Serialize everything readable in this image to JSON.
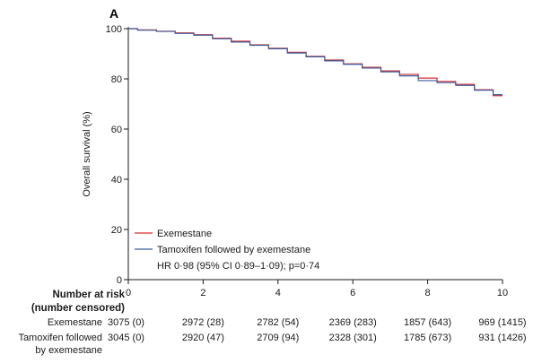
{
  "chart_data": {
    "type": "line",
    "panel_label": "A",
    "ylabel": "Overall survival (%)",
    "xlabel": "",
    "xlim": [
      0,
      10
    ],
    "ylim": [
      0,
      100
    ],
    "x_ticks": [
      0,
      2,
      4,
      6,
      8,
      10
    ],
    "y_ticks": [
      0,
      20,
      40,
      60,
      80,
      100
    ],
    "grid": false,
    "legend_position": "bottom-left",
    "annotation": "HR 0·98 (95% CI 0·89–1·09); p=0·74",
    "series": [
      {
        "name": "Exemestane",
        "color": "#d62f2f",
        "x": [
          0,
          0.5,
          1,
          1.5,
          2,
          2.5,
          3,
          3.5,
          4,
          4.5,
          5,
          5.5,
          6,
          6.5,
          7,
          7.5,
          8,
          8.5,
          9,
          9.5,
          10
        ],
        "y": [
          100,
          99.5,
          99,
          98.3,
          97.6,
          96.2,
          95,
          93.6,
          92.2,
          90.6,
          89,
          87.5,
          86,
          84.6,
          83.2,
          81.8,
          80.3,
          79,
          77.8,
          75.7,
          73.3
        ]
      },
      {
        "name": "Tamoxifen followed by exemestane",
        "color": "#3a5fa0",
        "x": [
          0,
          0.5,
          1,
          1.5,
          2,
          2.5,
          3,
          3.5,
          4,
          4.5,
          5,
          5.5,
          6,
          6.5,
          7,
          7.5,
          8,
          8.5,
          9,
          9.5,
          10
        ],
        "y": [
          100,
          99.4,
          98.9,
          98.1,
          97.4,
          96,
          94.7,
          93.4,
          92,
          90.3,
          88.8,
          87.2,
          85.8,
          84.3,
          82.8,
          81.2,
          79.3,
          78.5,
          77.4,
          75.5,
          73.7
        ]
      }
    ],
    "risk_table": {
      "title_line1": "Number at risk",
      "title_line2": "(number censored)",
      "rows": [
        {
          "label_lines": [
            "Exemestane"
          ],
          "values": [
            "3075 (0)",
            "2972 (28)",
            "2782 (54)",
            "2369 (283)",
            "1857 (643)",
            "969 (1415)"
          ]
        },
        {
          "label_lines": [
            "Tamoxifen followed",
            "by exemestane"
          ],
          "values": [
            "3045 (0)",
            "2920 (47)",
            "2709 (94)",
            "2328 (301)",
            "1785 (673)",
            "931 (1426)"
          ]
        }
      ]
    }
  }
}
